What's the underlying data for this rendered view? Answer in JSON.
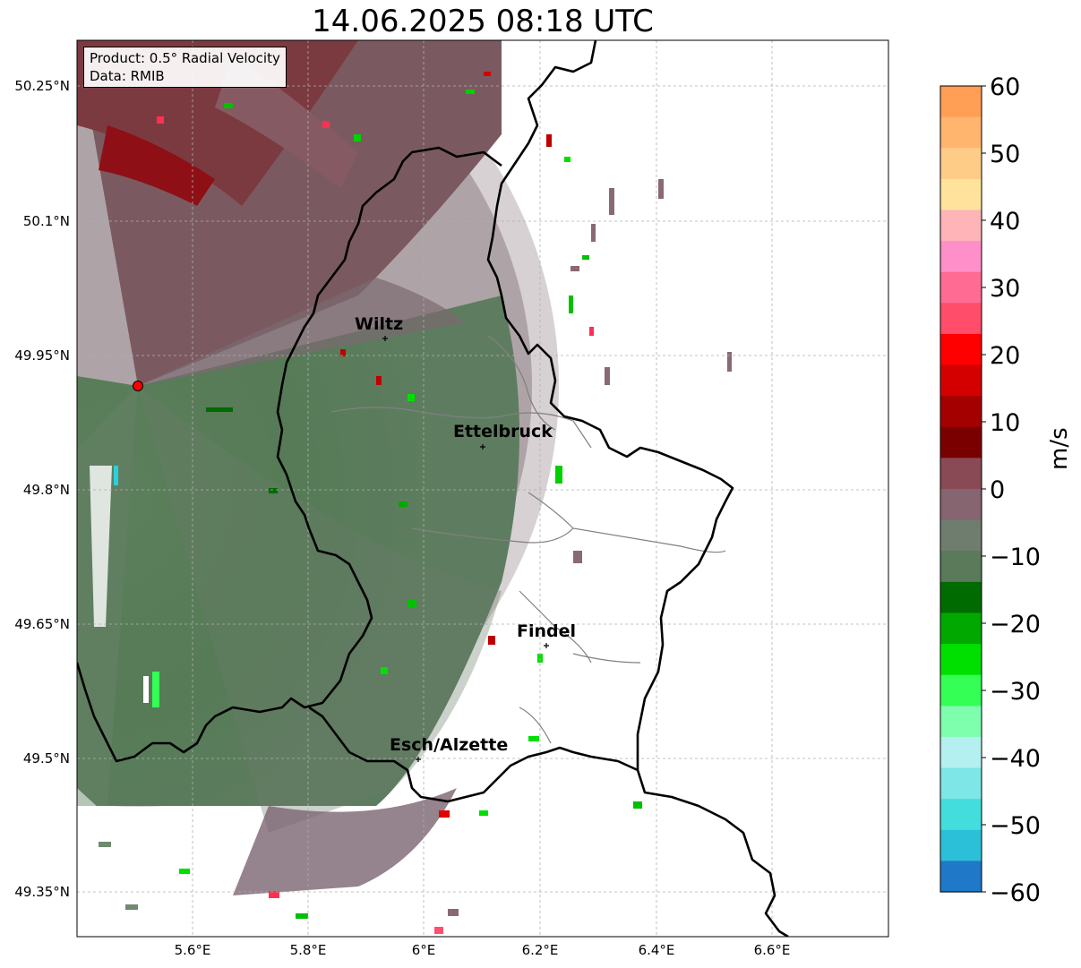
{
  "title": "14.06.2025 08:18 UTC",
  "info": {
    "product_line": "Product: 0.5° Radial Velocity",
    "data_line": "Data: RMIB"
  },
  "map": {
    "lat_ticks": [
      "50.25°N",
      "50.1°N",
      "49.95°N",
      "49.8°N",
      "49.65°N",
      "49.5°N",
      "49.35°N"
    ],
    "lon_ticks": [
      "5.6°E",
      "5.8°E",
      "6°E",
      "6.2°E",
      "6.4°E",
      "6.6°E"
    ],
    "cities": [
      {
        "name": "Wiltz"
      },
      {
        "name": "Ettelbruck"
      },
      {
        "name": "Findel"
      },
      {
        "name": "Esch/Alzette"
      }
    ],
    "radar_site_color": "#ff0000"
  },
  "colorbar": {
    "label": "m/s",
    "ticks": [
      "60",
      "50",
      "40",
      "30",
      "20",
      "10",
      "0",
      "−10",
      "−20",
      "−30",
      "−40",
      "−50",
      "−60"
    ],
    "colors": [
      "#ff9e55",
      "#ffb56d",
      "#ffcc88",
      "#ffe39c",
      "#ffb4b8",
      "#ff8fc8",
      "#ff6b93",
      "#ff4d6a",
      "#ff0000",
      "#d40000",
      "#a40000",
      "#7a0000",
      "#8a4a55",
      "#866470",
      "#6f7d6f",
      "#5a7a5a",
      "#006b00",
      "#00a800",
      "#00e000",
      "#33ff55",
      "#7dffae",
      "#b4f0f0",
      "#7ee6e6",
      "#44dddd",
      "#2bc0d8",
      "#1f78c8"
    ]
  }
}
